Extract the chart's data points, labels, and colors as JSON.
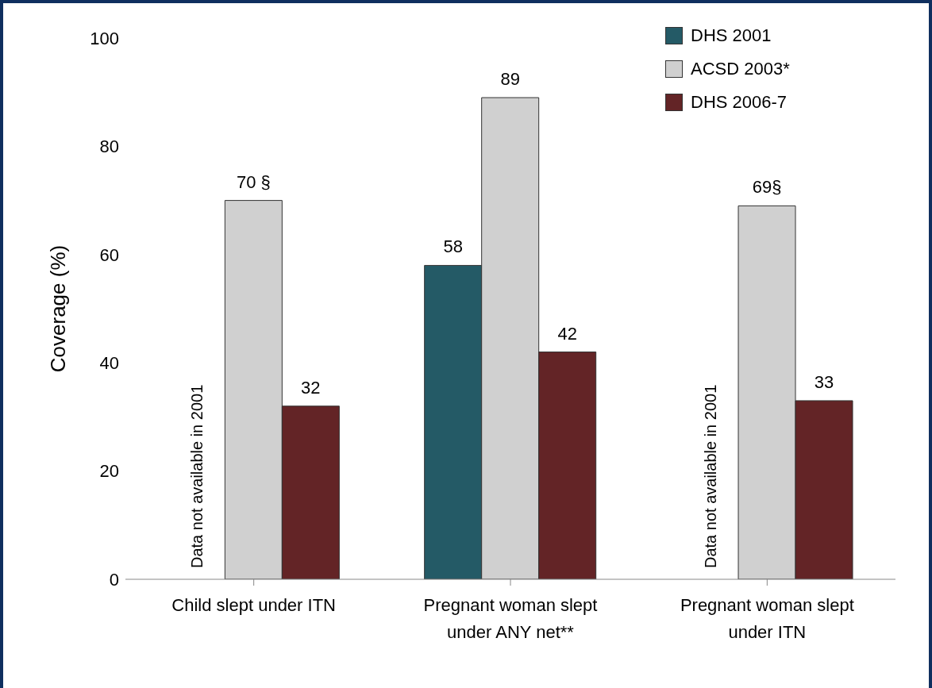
{
  "chart_data": {
    "type": "bar",
    "ylabel": "Coverage (%)",
    "categories": [
      "Child slept under ITN",
      "Pregnant woman slept under ANY net**",
      "Pregnant woman slept under ITN"
    ],
    "series": [
      {
        "name": "DHS 2001",
        "color": "#245a66",
        "values": [
          null,
          58,
          null
        ],
        "value_labels": [
          null,
          "58",
          null
        ]
      },
      {
        "name": "ACSD 2003*",
        "color": "#d0d0d0",
        "values": [
          70,
          89,
          69
        ],
        "value_labels": [
          "70 §",
          "89",
          "69§"
        ]
      },
      {
        "name": "DHS 2006-7",
        "color": "#632426",
        "values": [
          32,
          42,
          33
        ],
        "value_labels": [
          "32",
          "42",
          "33"
        ]
      }
    ],
    "ylim": [
      0,
      100
    ],
    "yticks": [
      0,
      20,
      40,
      60,
      80,
      100
    ],
    "grid": false,
    "legend": "top right",
    "annotations": [
      "Data not available in 2001",
      "Data not available  in 2001"
    ]
  }
}
